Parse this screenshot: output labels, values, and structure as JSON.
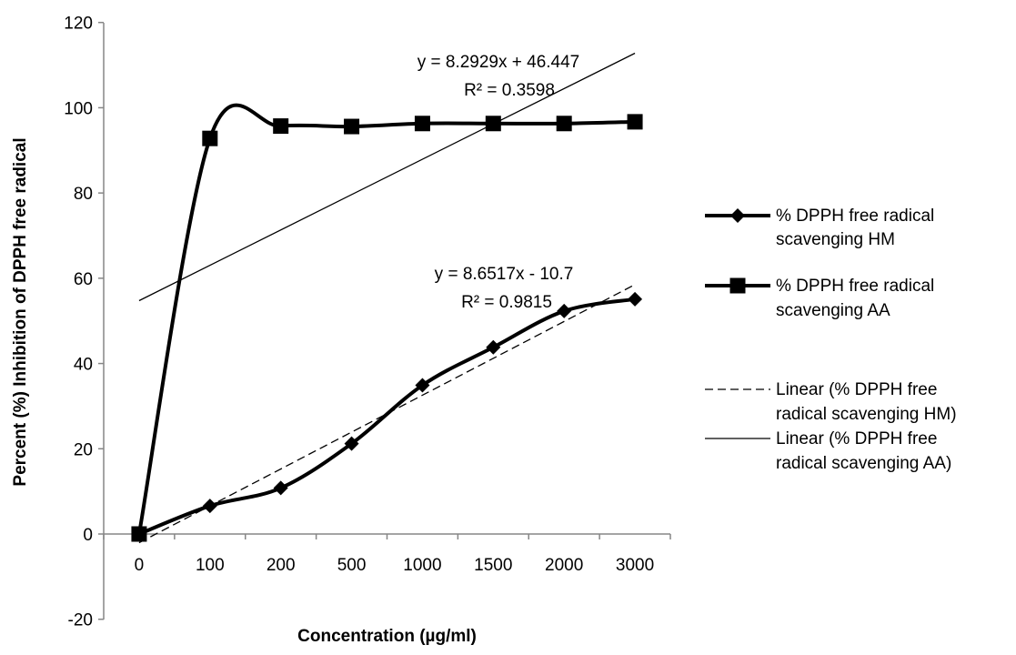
{
  "chart_data": {
    "type": "line",
    "title": "",
    "xlabel": "Concentration (µg/ml)",
    "ylabel": "Percent (%) Inhibition of DPPH free radical",
    "categories": [
      "0",
      "100",
      "200",
      "500",
      "1000",
      "1500",
      "2000",
      "3000"
    ],
    "ylim": [
      -20,
      120
    ],
    "yticks": [
      -20,
      0,
      20,
      40,
      60,
      80,
      100,
      120
    ],
    "grid": false,
    "legend_position": "right",
    "series": [
      {
        "name": "% DPPH free radical scavenging HM",
        "marker": "diamond",
        "smooth": true,
        "values": [
          0,
          6.6,
          10.8,
          21.2,
          34.9,
          43.8,
          52.3,
          55.1
        ]
      },
      {
        "name": "% DPPH free radical scavenging AA",
        "marker": "square",
        "smooth": true,
        "values": [
          0,
          92.8,
          95.7,
          95.6,
          96.3,
          96.3,
          96.3,
          96.7
        ]
      }
    ],
    "trendlines": [
      {
        "name": "Linear (% DPPH free radical scavenging HM)",
        "of_series": "% DPPH free radical scavenging HM",
        "style": "dashed",
        "slope": 8.6517,
        "intercept": -10.7,
        "equation": "y = 8.6517x - 10.7",
        "r2": "R² = 0.9815"
      },
      {
        "name": "Linear (% DPPH free radical scavenging AA)",
        "of_series": "% DPPH free radical scavenging AA",
        "style": "solid-thin",
        "slope": 8.2929,
        "intercept": 46.447,
        "equation": "y = 8.2929x + 46.447",
        "r2": "R² = 0.3598"
      }
    ],
    "legend": [
      {
        "line1": "% DPPH free radical",
        "line2": "scavenging HM",
        "marker": "diamond",
        "style": "thick"
      },
      {
        "line1": "% DPPH free radical",
        "line2": "scavenging AA",
        "marker": "square",
        "style": "thick"
      },
      {
        "line1": "Linear (% DPPH free",
        "line2": "radical scavenging HM)",
        "marker": "none",
        "style": "dashed"
      },
      {
        "line1": "Linear (% DPPH free",
        "line2": "radical scavenging AA)",
        "marker": "none",
        "style": "solid-thin"
      }
    ],
    "colors": {
      "series": "#000000",
      "axis": "#868686",
      "background": "#ffffff"
    }
  }
}
